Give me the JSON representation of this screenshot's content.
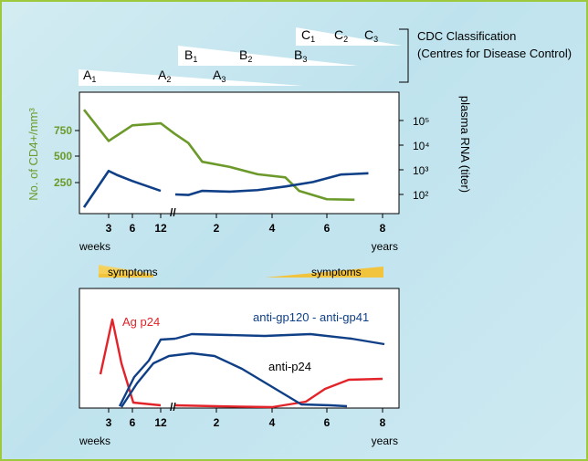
{
  "cdc": {
    "title": "CDC Classification",
    "subtitle": "(Centres for Disease Control)",
    "stages": [
      "A1",
      "A2",
      "A3",
      "B1",
      "B2",
      "B3",
      "C1",
      "C2",
      "C3"
    ]
  },
  "symptoms": {
    "left": "symptoms",
    "right": "symptoms"
  },
  "colors": {
    "green": "#6b9a2a",
    "blue": "#0f3f86",
    "red": "#e2232a",
    "yellow": "#f2c33c"
  },
  "chart_data": [
    {
      "type": "line",
      "ylabel_left": "No. of CD4+/mm³",
      "ylabel_right": "plasma RNA (titer)",
      "left_ticks": [
        "750",
        "500",
        "250"
      ],
      "right_ticks": [
        "10⁵",
        "10⁴",
        "10³",
        "10²"
      ],
      "x_ticks": [
        "3",
        "6",
        "12",
        "2",
        "4",
        "6",
        "8"
      ],
      "x_unit_left": "weeks",
      "x_unit_right": "years",
      "axis_break": "//",
      "series": [
        {
          "color": "#6b9a2a",
          "x": [
            "0w",
            "3w",
            "6w",
            "12w",
            "1.5y",
            "2y",
            "2.5y",
            "3.5y",
            "4.5y",
            "5.5y",
            "6y",
            "7y",
            "8y"
          ],
          "values": [
            950,
            650,
            800,
            820,
            720,
            630,
            450,
            400,
            330,
            300,
            170,
            90,
            85
          ]
        },
        {
          "color": "#0f3f86",
          "x": [
            "0w",
            "3w",
            "4w",
            "6w",
            "12w",
            "12w+",
            "2y",
            "2.5y",
            "3.5y",
            "4.5y",
            "5.5y",
            "6.5y",
            "7.5y",
            "8.5y"
          ],
          "values": [
            30,
            900,
            620,
            350,
            140,
            100,
            95,
            140,
            130,
            150,
            210,
            320,
            640,
            720
          ]
        }
      ]
    },
    {
      "type": "line",
      "x_ticks": [
        "3",
        "6",
        "12",
        "2",
        "4",
        "6",
        "8"
      ],
      "x_unit_left": "weeks",
      "x_unit_right": "years",
      "series": [
        {
          "name": "Ag p24",
          "color": "#e2232a"
        },
        {
          "name": "anti-gp120 - anti-gp41",
          "color": "#0f3f86"
        },
        {
          "name": "anti-p24",
          "color": "#0f3f86"
        }
      ]
    }
  ]
}
